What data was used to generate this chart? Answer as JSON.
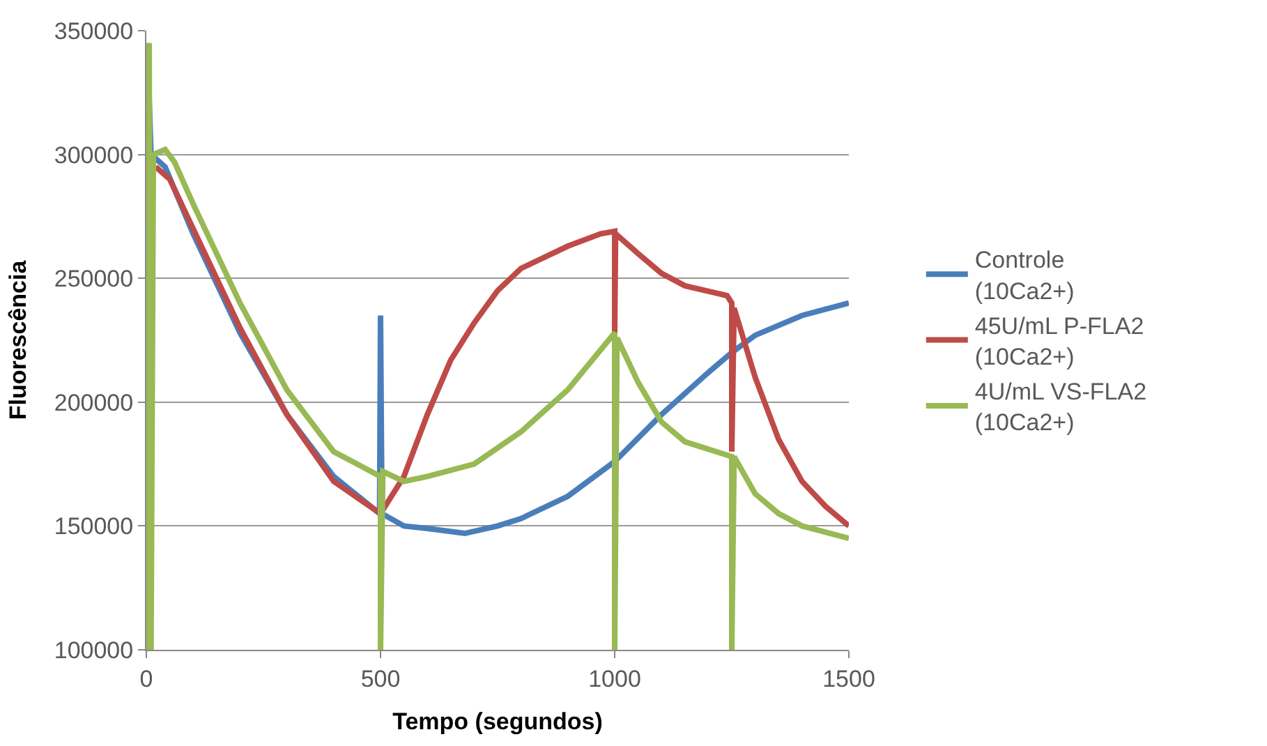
{
  "chart_data": {
    "type": "line",
    "xlabel": "Tempo (segundos)",
    "ylabel": "Fluorescência",
    "xlim": [
      0,
      1500
    ],
    "xticks": [
      0,
      500,
      1000,
      1500
    ],
    "ylim": [
      100000,
      350000
    ],
    "yticks": [
      100000,
      150000,
      200000,
      250000,
      300000,
      350000
    ],
    "grid": "y",
    "legend": "right",
    "marker": "none",
    "line_style": "solid",
    "series": [
      {
        "name": "Controle\n(10Ca2+)",
        "color": "#4a7ebb",
        "x": [
          2,
          10,
          40,
          100,
          200,
          300,
          400,
          498,
          500,
          503,
          550,
          600,
          680,
          750,
          800,
          900,
          1000,
          1100,
          1200,
          1250,
          1300,
          1400,
          1500
        ],
        "values": [
          345000,
          300000,
          295000,
          268000,
          228000,
          195000,
          170000,
          155000,
          235000,
          155000,
          150000,
          149000,
          147000,
          150000,
          153000,
          162000,
          176000,
          195000,
          212000,
          220000,
          227000,
          235000,
          240000
        ]
      },
      {
        "name": "45U/mL P-FLA2\n(10Ca2+)",
        "color": "#be4b48",
        "x": [
          20,
          50,
          100,
          200,
          300,
          400,
          500,
          550,
          600,
          650,
          700,
          750,
          800,
          900,
          970,
          1000,
          1000,
          1002,
          1050,
          1100,
          1150,
          1240,
          1250,
          1250,
          1255,
          1300,
          1350,
          1400,
          1450,
          1500
        ],
        "values": [
          295000,
          290000,
          270000,
          230000,
          195000,
          168000,
          155000,
          170000,
          195000,
          217000,
          232000,
          245000,
          254000,
          263000,
          268000,
          269000,
          228000,
          268000,
          260000,
          252000,
          247000,
          243000,
          240000,
          180000,
          238000,
          210000,
          185000,
          168000,
          158000,
          150000
        ]
      },
      {
        "name": "4U/mL VS-FLA2\n(10Ca2+)",
        "color": "#98b954",
        "x": [
          5,
          6,
          10,
          15,
          40,
          60,
          100,
          200,
          300,
          400,
          500,
          500,
          505,
          550,
          600,
          700,
          800,
          900,
          1000,
          1000,
          1005,
          1050,
          1100,
          1150,
          1250,
          1250,
          1255,
          1300,
          1350,
          1400,
          1500
        ],
        "values": [
          100000,
          345000,
          100000,
          300000,
          302000,
          297000,
          280000,
          240000,
          205000,
          180000,
          170000,
          100000,
          172000,
          168000,
          170000,
          175000,
          188000,
          205000,
          228000,
          100000,
          226000,
          208000,
          192000,
          184000,
          178000,
          100000,
          178000,
          163000,
          155000,
          150000,
          145000
        ]
      }
    ]
  }
}
